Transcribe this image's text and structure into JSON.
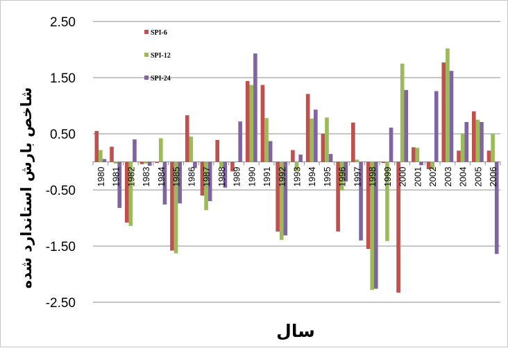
{
  "chart_data": {
    "type": "bar",
    "title": "",
    "xlabel": "سال",
    "ylabel": "شاخص بارش استاندارد شده",
    "ylim": [
      -2.5,
      2.5
    ],
    "yticks": [
      "2.50",
      "1.50",
      "0.50",
      "-0.50",
      "-1.50",
      "-2.50"
    ],
    "ytick_values": [
      2.5,
      1.5,
      0.5,
      -0.5,
      -1.5,
      -2.5
    ],
    "grid": true,
    "legend_position": "top-left",
    "categories": [
      "1980",
      "1981",
      "1982",
      "1983",
      "1984",
      "1985",
      "1986",
      "1987",
      "1988",
      "1989",
      "1990",
      "1991",
      "1992",
      "1993",
      "1994",
      "1995",
      "1996",
      "1997",
      "1998",
      "1999",
      "2000",
      "2001",
      "2002",
      "2003",
      "2004",
      "2005",
      "2006"
    ],
    "series": [
      {
        "name": "SPI-6",
        "color": "#c0504d",
        "values": [
          0.55,
          0.27,
          -1.08,
          -0.04,
          -0.02,
          -1.58,
          0.83,
          -0.6,
          0.39,
          -0.17,
          1.44,
          1.37,
          -1.24,
          0.21,
          1.21,
          0.5,
          -1.24,
          0.7,
          -1.55,
          -0.02,
          -2.33,
          0.26,
          -0.13,
          1.77,
          0.2,
          0.9,
          0.2
        ]
      },
      {
        "name": "SPI-12",
        "color": "#9bbb59",
        "values": [
          0.21,
          -0.03,
          -1.14,
          -0.03,
          0.42,
          -1.63,
          0.45,
          -0.86,
          -0.1,
          0.0,
          1.37,
          0.78,
          -1.39,
          -0.17,
          0.77,
          0.79,
          -0.51,
          0.04,
          -2.28,
          -1.41,
          1.75,
          0.25,
          -0.13,
          2.02,
          0.5,
          0.75,
          0.5
        ]
      },
      {
        "name": "SPI-24",
        "color": "#8064a2",
        "values": [
          0.05,
          -0.82,
          0.4,
          -0.07,
          -0.76,
          -0.74,
          -0.11,
          -0.7,
          -0.46,
          0.72,
          1.93,
          0.37,
          -1.31,
          0.13,
          0.93,
          0.14,
          -0.35,
          -1.4,
          -2.26,
          0.61,
          1.28,
          -0.06,
          1.26,
          1.62,
          0.71,
          0.71,
          -1.64
        ]
      }
    ]
  }
}
